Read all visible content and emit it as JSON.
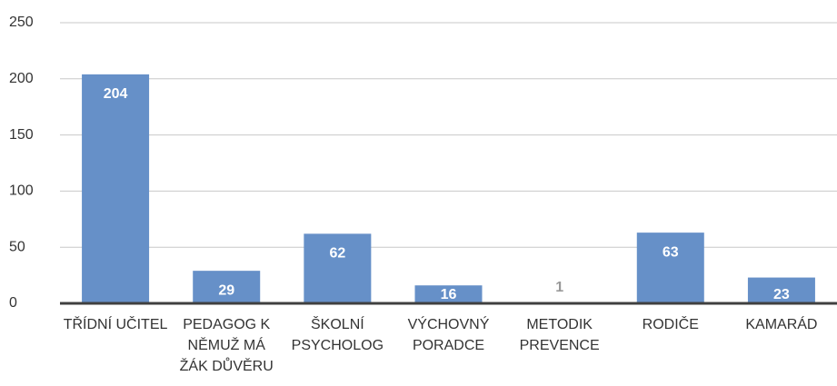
{
  "chart_data": {
    "type": "bar",
    "categories": [
      "TŘÍDNÍ UČITEL",
      "PEDAGOG K NĚMUŽ MÁ ŽÁK DŮVĚRU",
      "ŠKOLNÍ PSYCHOLOG",
      "VÝCHOVNÝ PORADCE",
      "METODIK PREVENCE",
      "RODIČE",
      "KAMARÁD"
    ],
    "values": [
      204,
      29,
      62,
      16,
      1,
      63,
      23
    ],
    "color": "#6690c8",
    "ylim": [
      0,
      250
    ],
    "yticks": [
      0,
      50,
      100,
      150,
      200,
      250
    ],
    "grid": true
  }
}
